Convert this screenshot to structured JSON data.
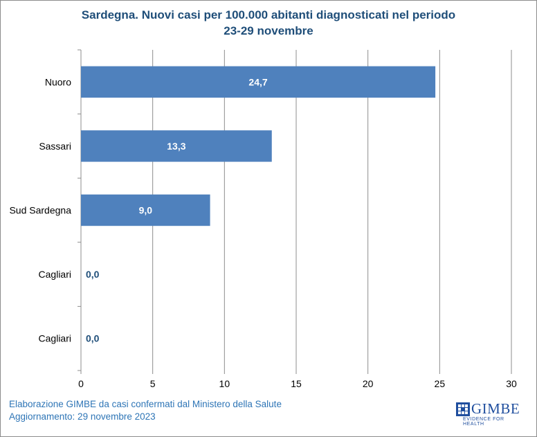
{
  "chart_data": {
    "type": "bar",
    "orientation": "horizontal",
    "title": "Sardegna. Nuovi casi per 100.000 abitanti diagnosticati nel periodo",
    "subtitle": "23-29 novembre",
    "categories": [
      "Nuoro",
      "Sassari",
      "Sud Sardegna",
      "Cagliari",
      "Cagliari"
    ],
    "values": [
      24.7,
      13.3,
      9.0,
      0.0,
      0.0
    ],
    "data_labels": [
      "24,7",
      "13,3",
      "9,0",
      "0,0",
      "0,0"
    ],
    "xlim": [
      0,
      30
    ],
    "x_ticks": [
      "0",
      "5",
      "10",
      "15",
      "20",
      "25",
      "30"
    ],
    "grid": "vertical",
    "bar_color": "#4f81bd",
    "label_color_inside": "#ffffff",
    "label_color_outside": "#1f4e79"
  },
  "footer": {
    "line1": "Elaborazione GIMBE da casi confermati dal Ministero della Salute",
    "line2": "Aggiornamento: 29 novembre 2023"
  },
  "logo": {
    "name": "GIMBE",
    "tagline": "EVIDENCE FOR HEALTH",
    "color": "#1f4e9e"
  }
}
